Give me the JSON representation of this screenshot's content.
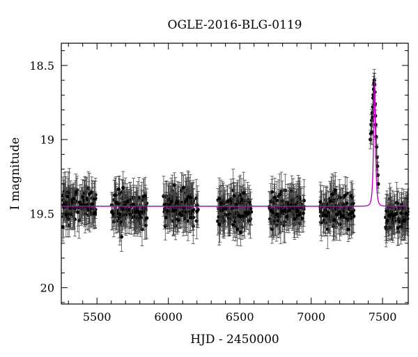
{
  "chart_data": {
    "type": "scatter",
    "title": "OGLE-2016-BLG-0119",
    "xlabel": "HJD - 2450000",
    "ylabel": "I magnitude",
    "xlim": [
      5250,
      7680
    ],
    "ylim": [
      20.11,
      18.35
    ],
    "y_inverted": true,
    "x_ticks": [
      5500,
      6000,
      6500,
      7000,
      7500
    ],
    "y_ticks": [
      18.5,
      19,
      19.5,
      20
    ],
    "x_tick_labels": [
      "5500",
      "6000",
      "6500",
      "7000",
      "7500"
    ],
    "y_tick_labels": [
      "18.5",
      "19",
      "19.5",
      "20"
    ],
    "grid": false,
    "series": [
      {
        "kind": "observations",
        "marker_color": "#000000",
        "seasons": [
          {
            "x_range": [
              5260,
              5490
            ],
            "mean_mag": 19.44,
            "scatter_mag": 0.09,
            "error_mag": 0.11
          },
          {
            "x_range": [
              5600,
              5850
            ],
            "mean_mag": 19.47,
            "scatter_mag": 0.09,
            "error_mag": 0.11
          },
          {
            "x_range": [
              5965,
              6210
            ],
            "mean_mag": 19.45,
            "scatter_mag": 0.09,
            "error_mag": 0.11
          },
          {
            "x_range": [
              6345,
              6580
            ],
            "mean_mag": 19.48,
            "scatter_mag": 0.09,
            "error_mag": 0.11
          },
          {
            "x_range": [
              6705,
              6950
            ],
            "mean_mag": 19.47,
            "scatter_mag": 0.09,
            "error_mag": 0.11
          },
          {
            "x_range": [
              7065,
              7300
            ],
            "mean_mag": 19.48,
            "scatter_mag": 0.09,
            "error_mag": 0.11
          },
          {
            "x_range": [
              7520,
              7680
            ],
            "mean_mag": 19.52,
            "scatter_mag": 0.09,
            "error_mag": 0.11
          }
        ],
        "event_points": [
          {
            "x": 7415,
            "y": 19.0
          },
          {
            "x": 7418,
            "y": 18.96
          },
          {
            "x": 7421,
            "y": 18.9
          },
          {
            "x": 7424,
            "y": 18.87
          },
          {
            "x": 7426,
            "y": 18.95
          },
          {
            "x": 7428,
            "y": 18.82
          },
          {
            "x": 7430,
            "y": 18.85
          },
          {
            "x": 7432,
            "y": 18.78
          },
          {
            "x": 7434,
            "y": 18.72
          },
          {
            "x": 7436,
            "y": 18.7
          },
          {
            "x": 7438,
            "y": 18.66
          },
          {
            "x": 7440,
            "y": 18.62
          },
          {
            "x": 7442,
            "y": 18.6
          },
          {
            "x": 7444,
            "y": 18.63
          },
          {
            "x": 7446,
            "y": 18.68
          },
          {
            "x": 7448,
            "y": 18.76
          },
          {
            "x": 7450,
            "y": 18.84
          },
          {
            "x": 7452,
            "y": 18.9
          },
          {
            "x": 7455,
            "y": 18.98
          },
          {
            "x": 7458,
            "y": 19.05
          },
          {
            "x": 7461,
            "y": 19.12
          },
          {
            "x": 7464,
            "y": 19.18
          },
          {
            "x": 7467,
            "y": 19.24
          },
          {
            "x": 7470,
            "y": 19.3
          }
        ]
      },
      {
        "kind": "model",
        "line_color": "#c000c0",
        "baseline_mag": 19.45,
        "t0": 7444,
        "peak_mag": 18.6,
        "tE": 11
      }
    ]
  }
}
